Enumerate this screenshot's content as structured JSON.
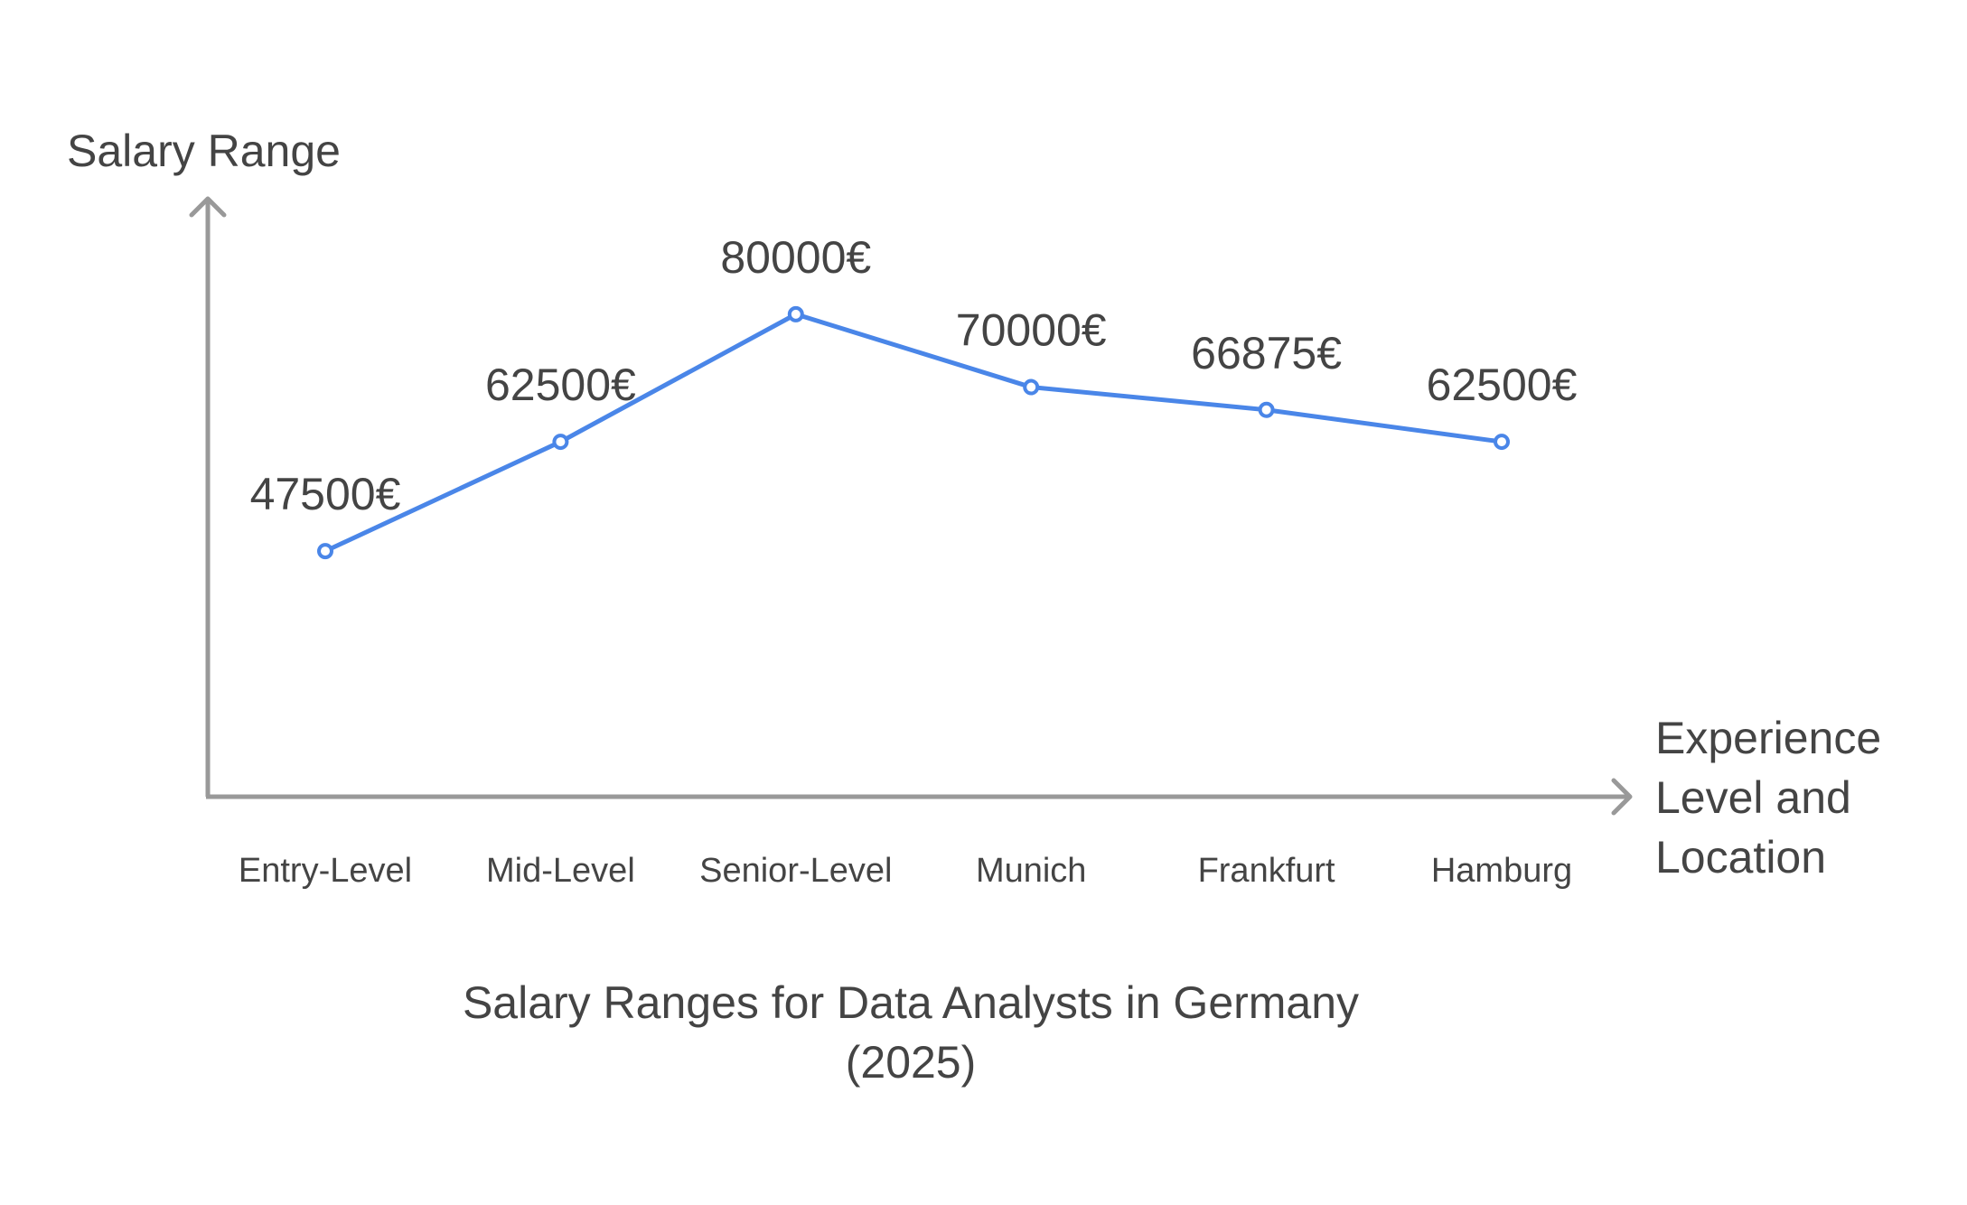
{
  "chart_data": {
    "type": "line",
    "title_lines": [
      "Salary Ranges for Data Analysts in Germany",
      "(2025)"
    ],
    "ylabel": "Salary Range",
    "xlabel_lines": [
      "Experience",
      "Level and",
      "Location"
    ],
    "categories": [
      "Entry-Level",
      "Mid-Level",
      "Senior-Level",
      "Munich",
      "Frankfurt",
      "Hamburg"
    ],
    "values": [
      47500,
      62500,
      80000,
      70000,
      66875,
      62500
    ],
    "value_labels": [
      "47500€",
      "62500€",
      "80000€",
      "70000€",
      "66875€",
      "62500€"
    ],
    "ylim": [
      13800,
      95600
    ],
    "grid": false,
    "legend": "none",
    "colors": {
      "line": "#4a86e8",
      "axis": "#999999",
      "text": "#444444"
    }
  }
}
